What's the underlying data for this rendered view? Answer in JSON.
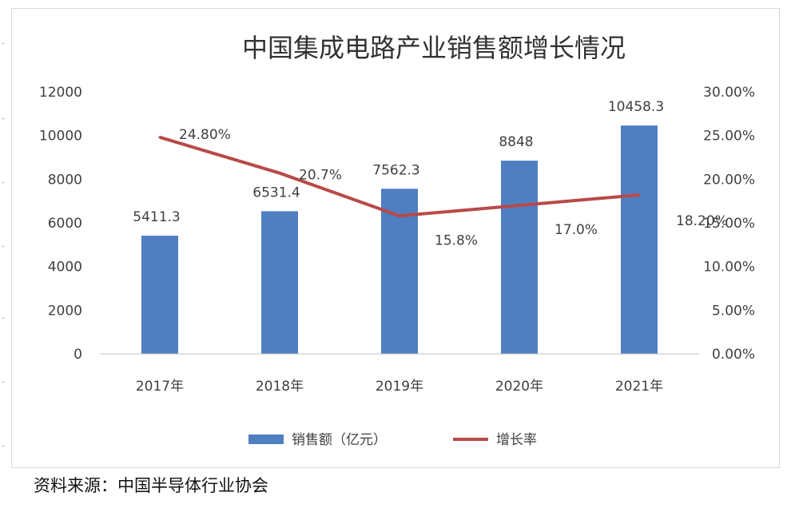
{
  "chart_data": {
    "type": "bar",
    "title": "中国集成电路产业销售额增长情况",
    "categories": [
      "2017年",
      "2018年",
      "2019年",
      "2020年",
      "2021年"
    ],
    "series": [
      {
        "name": "销售额（亿元）",
        "type": "bar",
        "axis": "left",
        "values": [
          5411.3,
          6531.4,
          7562.3,
          8848,
          10458.3
        ],
        "labels": [
          "5411.3",
          "6531.4",
          "7562.3",
          "8848",
          "10458.3"
        ],
        "color": "#4f7ec1"
      },
      {
        "name": "增长率",
        "type": "line",
        "axis": "right",
        "values": [
          24.8,
          20.7,
          15.8,
          17.0,
          18.2
        ],
        "labels": [
          "24.80%",
          "20.7%",
          "15.8%",
          "17.0%",
          "18.20%"
        ],
        "color": "#b84a48"
      }
    ],
    "y_left": {
      "min": 0,
      "max": 12000,
      "ticks": [
        "0",
        "2000",
        "4000",
        "6000",
        "8000",
        "10000",
        "12000"
      ]
    },
    "y_right": {
      "min": 0,
      "max": 30,
      "ticks": [
        "0.00%",
        "5.00%",
        "10.00%",
        "15.00%",
        "20.00%",
        "25.00%",
        "30.00%"
      ]
    },
    "xlabel": "",
    "ylabel": "",
    "grid": false,
    "legend": "bottom"
  },
  "source": "资料来源：中国半导体行业协会",
  "edge_marks": [
    "˼",
    "˼",
    "˼",
    "˼",
    "˼",
    "˼",
    "˼"
  ]
}
